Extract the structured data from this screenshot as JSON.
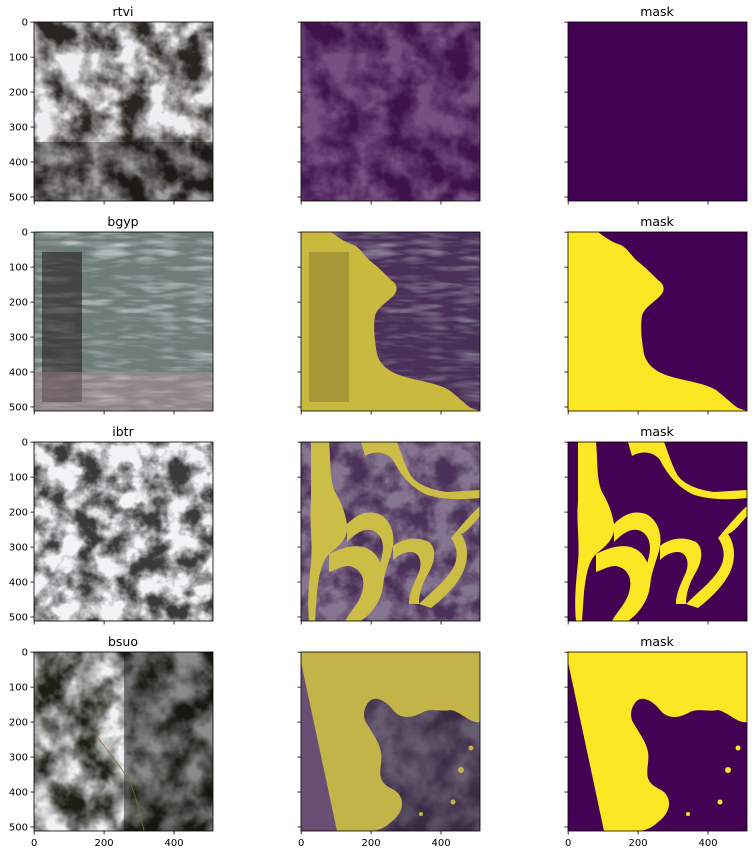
{
  "rows": [
    {
      "title": "rtvi",
      "mask_title": "mask",
      "mask_fraction": 0.0
    },
    {
      "title": "bgyp",
      "mask_title": "mask"
    },
    {
      "title": "ibtr",
      "mask_title": "mask"
    },
    {
      "title": "bsuo",
      "mask_title": "mask"
    }
  ],
  "axes": {
    "y_ticks": [
      "0",
      "100",
      "200",
      "300",
      "400",
      "500"
    ],
    "x_ticks": [
      "0",
      "200",
      "400"
    ]
  },
  "colors": {
    "mask_off": "#440154",
    "mask_on": "#fde725",
    "overlay_off": "#5a3566",
    "overlay_on": "#d6c64a"
  }
}
